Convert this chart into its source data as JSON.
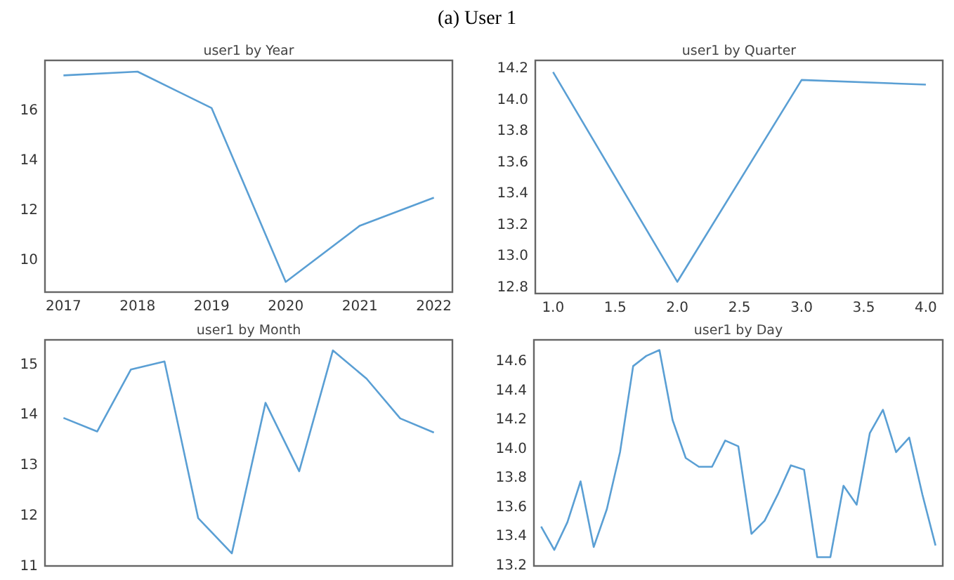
{
  "chart_data": [
    {
      "type": "line",
      "title": "user1 by Year",
      "annotations": [
        "(a) User 1"
      ],
      "x": [
        2017,
        2018,
        2019,
        2020,
        2021,
        2022
      ],
      "series": [
        {
          "color": "#5a9fd4",
          "values": [
            17.37,
            17.52,
            16.06,
            9.1,
            11.35,
            12.47
          ]
        }
      ],
      "xlim": [
        2016.75,
        2022.25
      ],
      "xticks": [
        2017,
        2018,
        2019,
        2020,
        2021,
        2022
      ],
      "ylim": [
        8.69,
        17.97
      ],
      "yticks": [
        10,
        12,
        14,
        16
      ],
      "grid": false
    },
    {
      "type": "line",
      "title": "user1 by Quarter",
      "x": [
        1,
        2,
        3,
        4
      ],
      "series": [
        {
          "color": "#5a9fd4",
          "values": [
            14.17,
            12.83,
            14.12,
            14.09
          ]
        }
      ],
      "xlim": [
        0.857,
        4.136
      ],
      "xticks": [
        {
          "value": 1,
          "label": "1.0"
        },
        {
          "value": 1.5,
          "label": "1.5"
        },
        {
          "value": 2,
          "label": "2.0"
        },
        {
          "value": 2.5,
          "label": "2.5"
        },
        {
          "value": 3,
          "label": "3.0"
        },
        {
          "value": 3.5,
          "label": "3.5"
        },
        {
          "value": 4,
          "label": "4.0"
        }
      ],
      "ylim": [
        12.755,
        14.245
      ],
      "yticks": [
        {
          "value": 12.8,
          "label": "12.8"
        },
        {
          "value": 13,
          "label": "13.0"
        },
        {
          "value": 13.2,
          "label": "13.2"
        },
        {
          "value": 13.4,
          "label": "13.4"
        },
        {
          "value": 13.6,
          "label": "13.6"
        },
        {
          "value": 13.8,
          "label": "13.8"
        },
        {
          "value": 14,
          "label": "14.0"
        },
        {
          "value": 14.2,
          "label": "14.2"
        }
      ],
      "grid": false
    },
    {
      "type": "line",
      "title": "user1 by Month",
      "categories": [
        null,
        null,
        null,
        null,
        null,
        null,
        null,
        null,
        null,
        null,
        null,
        null
      ],
      "series": [
        {
          "color": "#5a9fd4",
          "values": [
            13.92,
            13.65,
            14.88,
            15.04,
            11.93,
            11.23,
            14.22,
            12.86,
            15.26,
            14.7,
            13.91,
            13.63
          ]
        }
      ],
      "ylim": [
        10.98,
        15.47
      ],
      "yticks": [
        11,
        12,
        13,
        14,
        15
      ],
      "tick_labels": "y",
      "grid": false
    },
    {
      "type": "line",
      "title": "user1 by Day",
      "categories": [
        null,
        null,
        null,
        null,
        null,
        null,
        null,
        null,
        null,
        null,
        null,
        null,
        null,
        null,
        null,
        null,
        null,
        null,
        null,
        null,
        null,
        null,
        null,
        null,
        null,
        null,
        null,
        null,
        null,
        null,
        null
      ],
      "series": [
        {
          "color": "#5a9fd4",
          "values": [
            13.46,
            13.3,
            13.49,
            13.77,
            13.32,
            13.58,
            13.97,
            14.56,
            14.63,
            14.67,
            14.19,
            13.93,
            13.87,
            13.87,
            14.05,
            14.01,
            13.41,
            13.5,
            13.68,
            13.88,
            13.85,
            13.25,
            13.25,
            13.74,
            13.61,
            14.1,
            14.26,
            13.97,
            14.07,
            13.68,
            13.33
          ]
        }
      ],
      "ylim": [
        13.19,
        14.74
      ],
      "yticks": [
        {
          "value": 13.2,
          "label": "13.2"
        },
        {
          "value": 13.4,
          "label": "13.4"
        },
        {
          "value": 13.6,
          "label": "13.6"
        },
        {
          "value": 13.8,
          "label": "13.8"
        },
        {
          "value": 14,
          "label": "14.0"
        },
        {
          "value": 14.2,
          "label": "14.2"
        },
        {
          "value": 14.4,
          "label": "14.4"
        },
        {
          "value": 14.6,
          "label": "14.6"
        }
      ],
      "tick_labels": "y",
      "grid": false
    }
  ]
}
